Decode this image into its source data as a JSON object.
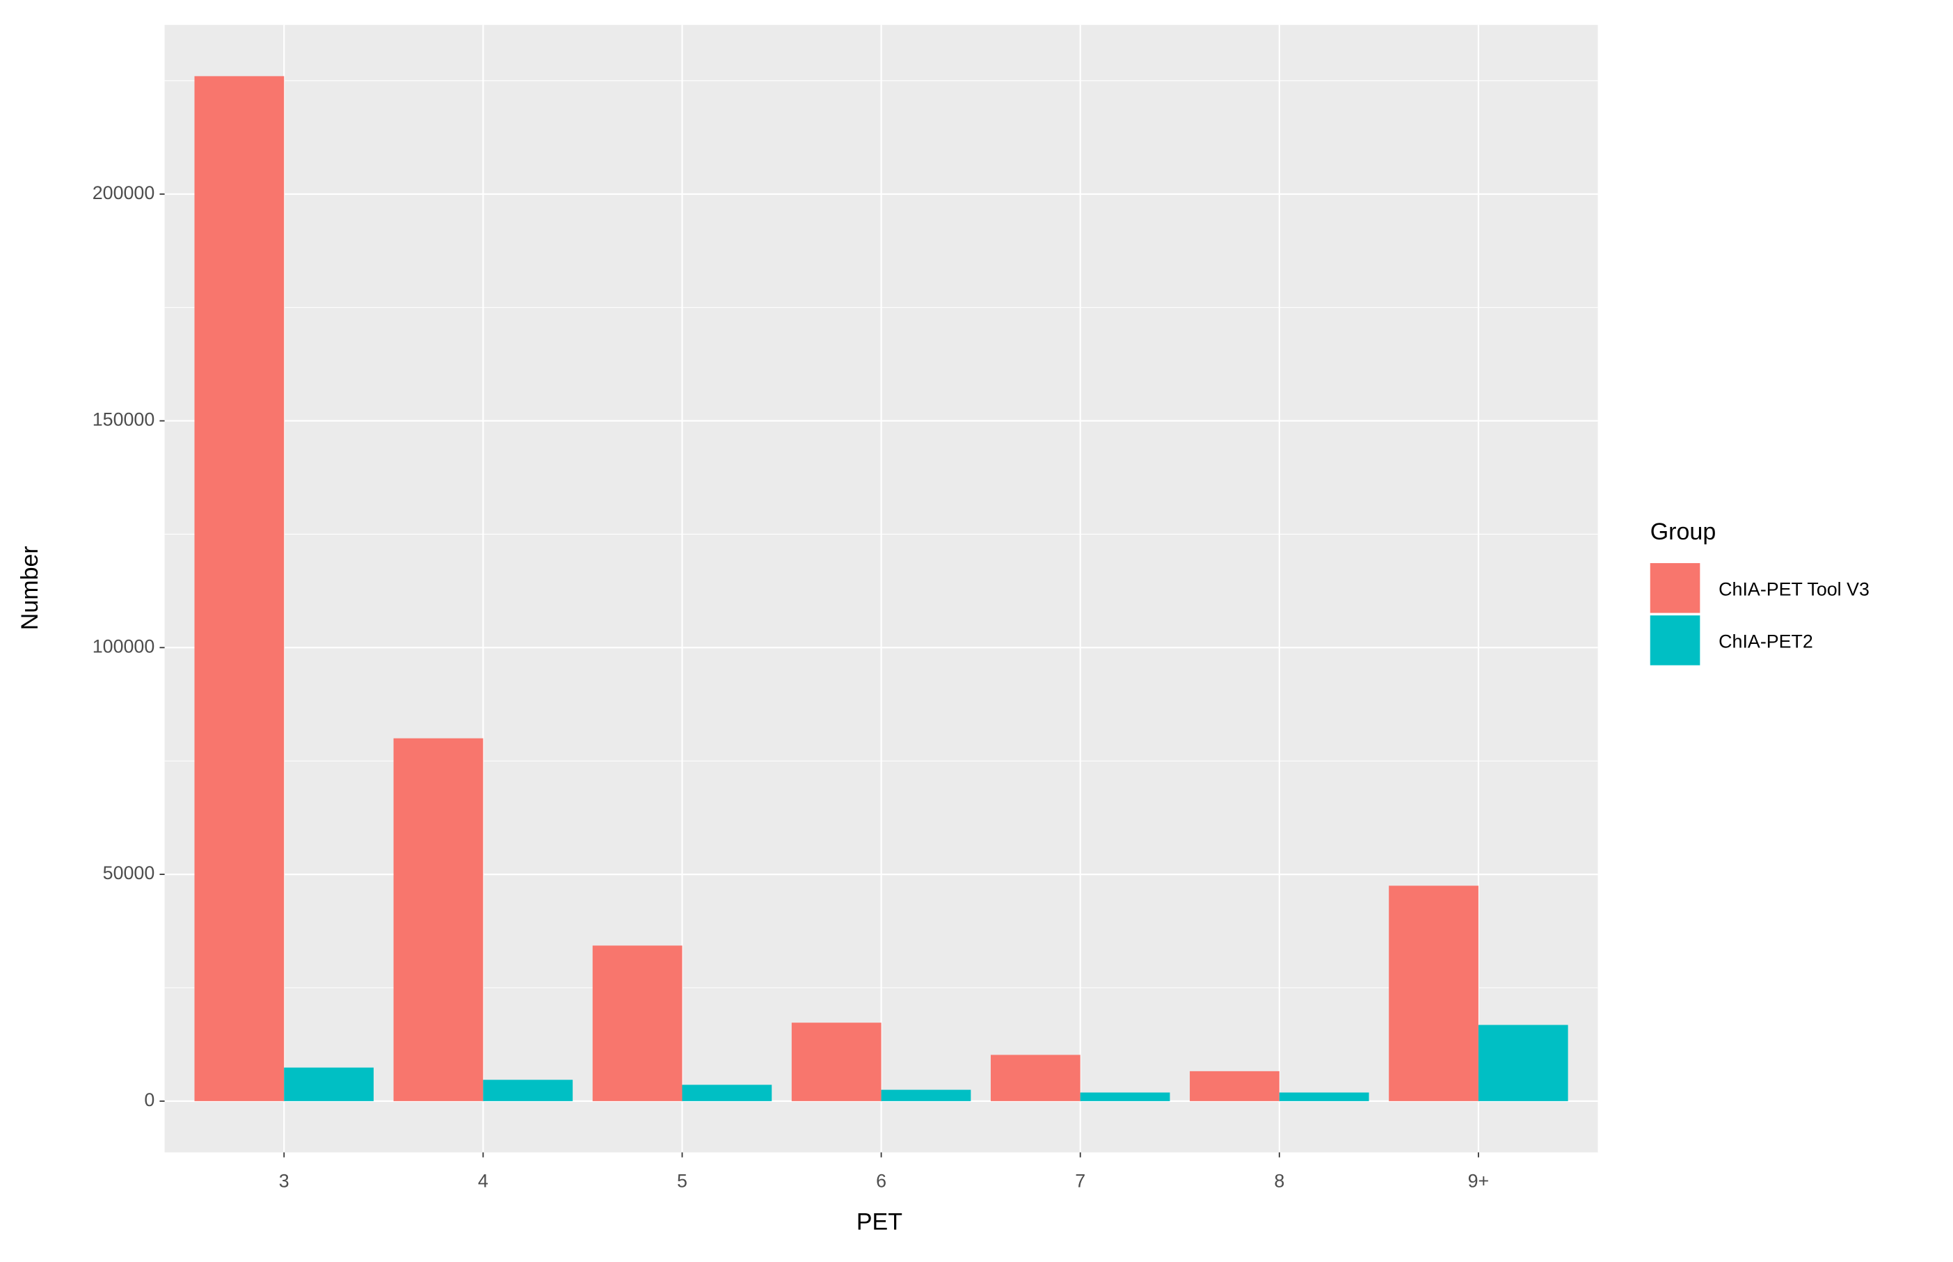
{
  "chart_data": {
    "type": "bar",
    "x_label": "PET",
    "y_label": "Number",
    "categories": [
      "3",
      "4",
      "5",
      "6",
      "7",
      "8",
      "9+"
    ],
    "series": [
      {
        "name": "ChIA-PET Tool V3",
        "color": "#f8766d",
        "values": [
          226000,
          80000,
          34300,
          17300,
          10200,
          6600,
          47500
        ]
      },
      {
        "name": "ChIA-PET2",
        "color": "#00bfc4",
        "values": [
          7400,
          4700,
          3600,
          2500,
          1900,
          1900,
          16800
        ]
      }
    ],
    "legend_title": "Group",
    "legend_position": "right",
    "ylim": [
      -11300,
      237300
    ],
    "yticks": [
      0,
      50000,
      100000,
      150000,
      200000
    ],
    "grid": true,
    "panel_color": "#ebebeb"
  }
}
